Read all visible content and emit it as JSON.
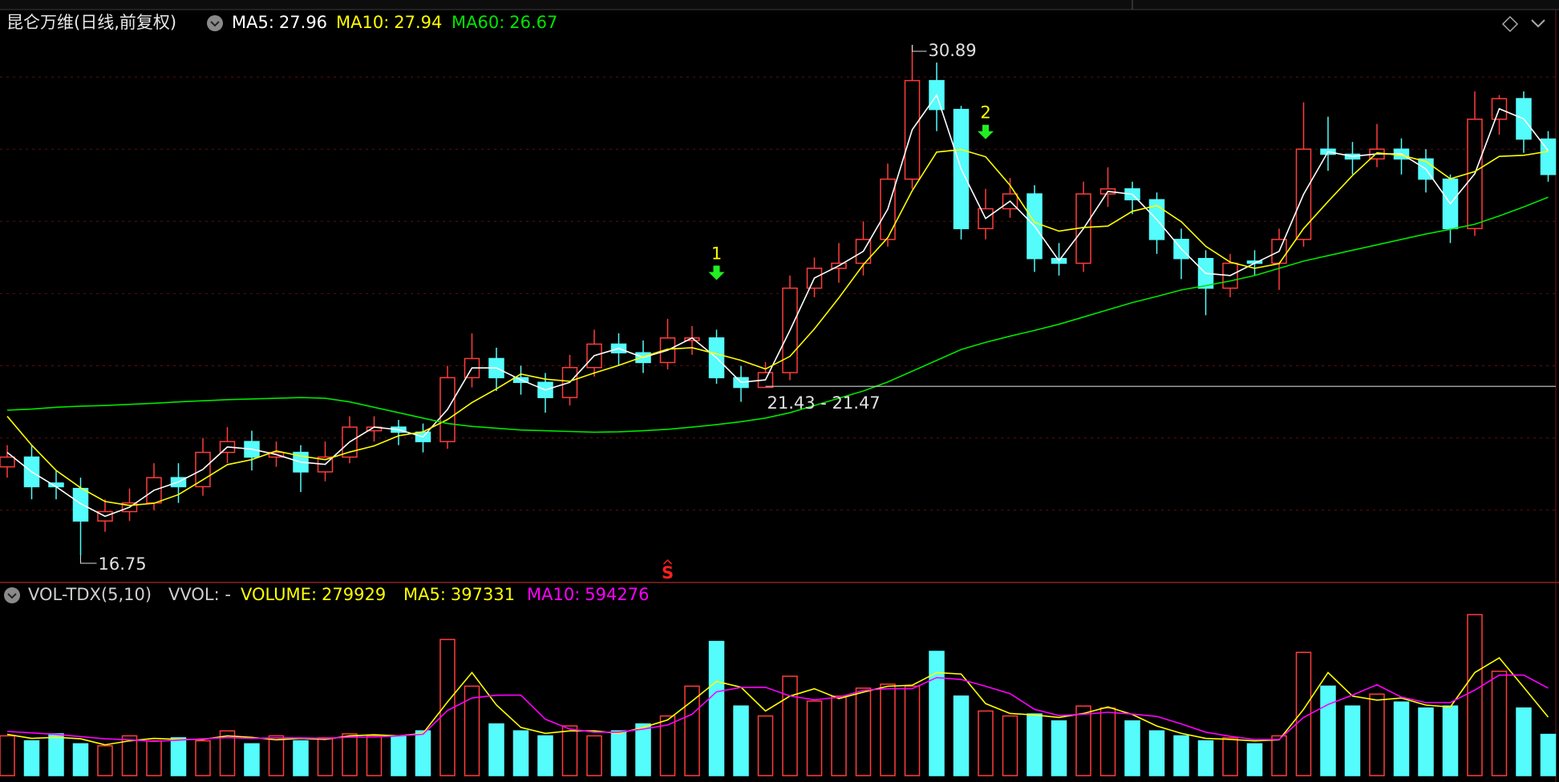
{
  "chart_data": [
    {
      "type": "candlestick",
      "title": "昆仑万维(日线,前复权)",
      "open": [
        19.2,
        19.47,
        18.75,
        18.6,
        17.7,
        17.96,
        18.2,
        18.9,
        18.65,
        19.6,
        19.9,
        19.47,
        19.6,
        19.06,
        19.47,
        20.2,
        20.3,
        20.16,
        19.9,
        21.67,
        22.2,
        21.67,
        21.54,
        21.12,
        21.95,
        22.6,
        22.36,
        22.09,
        22.7,
        22.77,
        21.67,
        21.4,
        21.81,
        24.15,
        24.7,
        24.84,
        25.5,
        27.17,
        29.9,
        29.1,
        25.8,
        26.35,
        26.76,
        24.97,
        24.84,
        26.76,
        26.9,
        26.6,
        25.5,
        24.97,
        24.15,
        24.9,
        24.84,
        25.5,
        28.0,
        27.86,
        27.73,
        28.0,
        27.73,
        27.17,
        25.8,
        28.83,
        29.4,
        28.28
      ],
      "high": [
        19.8,
        19.8,
        19.1,
        18.9,
        18.3,
        18.6,
        19.3,
        19.3,
        20.0,
        20.3,
        20.2,
        19.9,
        19.8,
        19.9,
        20.6,
        20.6,
        20.5,
        20.4,
        22.0,
        22.9,
        22.5,
        22.0,
        21.8,
        22.3,
        23.0,
        22.9,
        22.7,
        23.3,
        23.1,
        23.0,
        22.0,
        22.1,
        24.5,
        25.0,
        25.4,
        26.0,
        27.6,
        30.89,
        30.4,
        29.2,
        26.9,
        27.2,
        27.0,
        25.4,
        27.1,
        27.5,
        27.1,
        26.8,
        25.8,
        25.2,
        25.1,
        25.2,
        25.8,
        29.3,
        28.9,
        28.2,
        28.7,
        28.3,
        28.0,
        27.3,
        29.6,
        29.5,
        29.6,
        28.5
      ],
      "low": [
        18.9,
        18.3,
        18.3,
        16.75,
        17.4,
        17.7,
        18.0,
        18.2,
        18.4,
        19.3,
        19.1,
        19.2,
        18.5,
        18.8,
        19.3,
        19.9,
        19.8,
        19.6,
        19.7,
        21.4,
        21.3,
        21.2,
        20.7,
        20.9,
        21.7,
        22.0,
        21.8,
        21.9,
        22.3,
        21.5,
        21.0,
        21.43,
        21.6,
        23.9,
        24.3,
        24.5,
        25.3,
        26.9,
        28.5,
        25.5,
        25.5,
        26.1,
        24.6,
        24.5,
        24.6,
        26.4,
        26.2,
        25.1,
        24.4,
        23.4,
        23.9,
        24.5,
        24.1,
        25.3,
        27.4,
        27.3,
        27.5,
        27.3,
        26.8,
        25.4,
        25.6,
        28.4,
        27.9,
        27.1
      ],
      "close": [
        19.47,
        18.65,
        18.65,
        17.7,
        17.96,
        18.2,
        18.9,
        18.65,
        19.6,
        19.9,
        19.47,
        19.6,
        19.06,
        19.47,
        20.3,
        20.3,
        20.16,
        19.9,
        21.67,
        22.2,
        21.67,
        21.54,
        21.12,
        21.95,
        22.6,
        22.36,
        22.09,
        22.77,
        22.77,
        21.67,
        21.4,
        21.81,
        24.15,
        24.7,
        24.84,
        25.5,
        27.17,
        29.9,
        29.1,
        25.8,
        26.35,
        26.76,
        24.97,
        24.84,
        26.76,
        26.9,
        26.6,
        25.5,
        24.97,
        24.15,
        24.84,
        24.84,
        25.5,
        28.0,
        27.86,
        27.73,
        28.0,
        27.73,
        27.17,
        25.8,
        28.83,
        29.4,
        28.28,
        27.3
      ],
      "up_color": "#ff3c3c",
      "down_color": "#54fcfc",
      "series": [
        {
          "name": "MA5:",
          "color": "#ffffff",
          "values": [
            19.6,
            19.06,
            18.65,
            18.18,
            17.83,
            18.08,
            18.55,
            18.78,
            19.13,
            19.75,
            19.69,
            19.54,
            19.33,
            19.27,
            19.89,
            20.3,
            20.23,
            20.03,
            20.79,
            21.94,
            21.94,
            21.61,
            21.33,
            21.54,
            22.28,
            22.48,
            22.23,
            22.43,
            22.77,
            22.22,
            21.54,
            21.61,
            22.98,
            24.43,
            24.77,
            25.17,
            26.34,
            28.54,
            29.5,
            27.45,
            26.08,
            26.56,
            25.87,
            24.91,
            25.8,
            26.83,
            26.75,
            26.05,
            25.24,
            24.56,
            24.5,
            24.84,
            25.17,
            26.75,
            27.93,
            27.8,
            27.87,
            27.87,
            27.45,
            26.49,
            27.32,
            29.12,
            28.84,
            27.96
          ]
        },
        {
          "name": "MA10:",
          "color": "#ffff00",
          "values": [
            20.6,
            19.8,
            19.1,
            18.62,
            18.24,
            18.13,
            18.19,
            18.43,
            18.84,
            19.26,
            19.4,
            19.64,
            19.5,
            19.4,
            19.61,
            19.78,
            20.06,
            20.17,
            20.51,
            20.98,
            21.36,
            21.77,
            21.63,
            21.57,
            21.8,
            22.01,
            22.25,
            22.46,
            22.5,
            22.33,
            22.15,
            21.91,
            22.26,
            23.02,
            23.88,
            24.8,
            25.55,
            26.85,
            27.92,
            27.99,
            27.79,
            27.0,
            25.97,
            25.73,
            25.83,
            25.87,
            26.28,
            26.44,
            25.99,
            25.31,
            24.87,
            24.7,
            24.83,
            25.8,
            26.55,
            27.27,
            27.9,
            27.83,
            27.66,
            27.18,
            27.38,
            27.8,
            27.83,
            27.94
          ]
        },
        {
          "name": "MA60:",
          "color": "#00e600",
          "values": [
            20.77,
            20.8,
            20.85,
            20.88,
            20.9,
            20.93,
            20.96,
            21.0,
            21.03,
            21.06,
            21.08,
            21.1,
            21.12,
            21.1,
            21.0,
            20.85,
            20.7,
            20.55,
            20.4,
            20.32,
            20.27,
            20.22,
            20.2,
            20.18,
            20.16,
            20.17,
            20.2,
            20.24,
            20.3,
            20.37,
            20.45,
            20.55,
            20.7,
            20.9,
            21.1,
            21.3,
            21.55,
            21.85,
            22.15,
            22.45,
            22.65,
            22.82,
            22.98,
            23.15,
            23.35,
            23.55,
            23.75,
            23.92,
            24.1,
            24.22,
            24.35,
            24.5,
            24.7,
            24.9,
            25.05,
            25.2,
            25.35,
            25.5,
            25.65,
            25.78,
            25.92,
            26.15,
            26.4,
            26.67
          ]
        }
      ],
      "ylim": [
        16.04,
        31.8
      ],
      "grid": [
        18,
        20,
        22,
        24,
        26,
        28,
        30
      ],
      "range_label": "21.43 - 21.47",
      "annotations": [
        {
          "text": "1",
          "at": 29,
          "color": "#ffff00"
        },
        {
          "text": "2",
          "at": 40,
          "color": "#ffff00"
        }
      ],
      "signal": {
        "text": "S",
        "at": 27,
        "color": "#ff2020"
      }
    },
    {
      "type": "bar",
      "title": "VOL-TDX(5,10)",
      "subtitle": "VVOL: -",
      "name": "VOLUME:",
      "color": "#ffff00",
      "values": [
        270000,
        236250,
        283500,
        216000,
        202500,
        270000,
        236250,
        256500,
        236250,
        303750,
        216000,
        270000,
        236250,
        256500,
        283500,
        270000,
        270000,
        303750,
        924750,
        607500,
        351000,
        303750,
        270000,
        337500,
        270000,
        303750,
        351000,
        405000,
        607500,
        911250,
        472500,
        405000,
        675000,
        506250,
        540000,
        594000,
        621000,
        607500,
        843750,
        540000,
        438750,
        405000,
        418500,
        371250,
        472500,
        459000,
        371250,
        303750,
        270000,
        236250,
        256500,
        216000,
        270000,
        837000,
        607500,
        472500,
        553500,
        499500,
        459000,
        472500,
        1093500,
        708750,
        459000,
        279929
      ],
      "series": [
        {
          "name": "MA5:",
          "color": "#ffff00",
          "values": [
            280000,
            253000,
            260000,
            250000,
            209000,
            236000,
            253000,
            246000,
            246000,
            270000,
            260000,
            243000,
            253000,
            246000,
            270000,
            277000,
            270000,
            287000,
            500000,
            700000,
            480000,
            327000,
            287000,
            304000,
            304000,
            287000,
            327000,
            378000,
            506000,
            640000,
            600000,
            439000,
            540000,
            590000,
            523000,
            567000,
            607000,
            614000,
            700000,
            690000,
            489000,
            422000,
            412000,
            395000,
            422000,
            466000,
            415000,
            337000,
            287000,
            253000,
            246000,
            236000,
            243000,
            450000,
            700000,
            540000,
            513000,
            527000,
            479000,
            466000,
            700000,
            800000,
            600000,
            397331
          ]
        },
        {
          "name": "MA10:",
          "color": "#ff00ff",
          "values": [
            300000,
            290000,
            280000,
            265000,
            250000,
            243000,
            232000,
            241000,
            250000,
            258000,
            253000,
            256000,
            256000,
            253000,
            261000,
            262000,
            270000,
            281000,
            442000,
            527000,
            546000,
            547000,
            383000,
            316000,
            295000,
            295000,
            316000,
            344000,
            417000,
            569000,
            599000,
            600000,
            541000,
            515000,
            532000,
            579000,
            590000,
            590000,
            666000,
            653000,
            607000,
            557000,
            450000,
            408000,
            417000,
            430000,
            418000,
            402000,
            351000,
            295000,
            267000,
            245000,
            245000,
            395000,
            483000,
            547000,
            617000,
            533000,
            496000,
            496000,
            581000,
            683000,
            683000,
            594276
          ]
        }
      ],
      "ylim": [
        0,
        1154000
      ]
    }
  ]
}
